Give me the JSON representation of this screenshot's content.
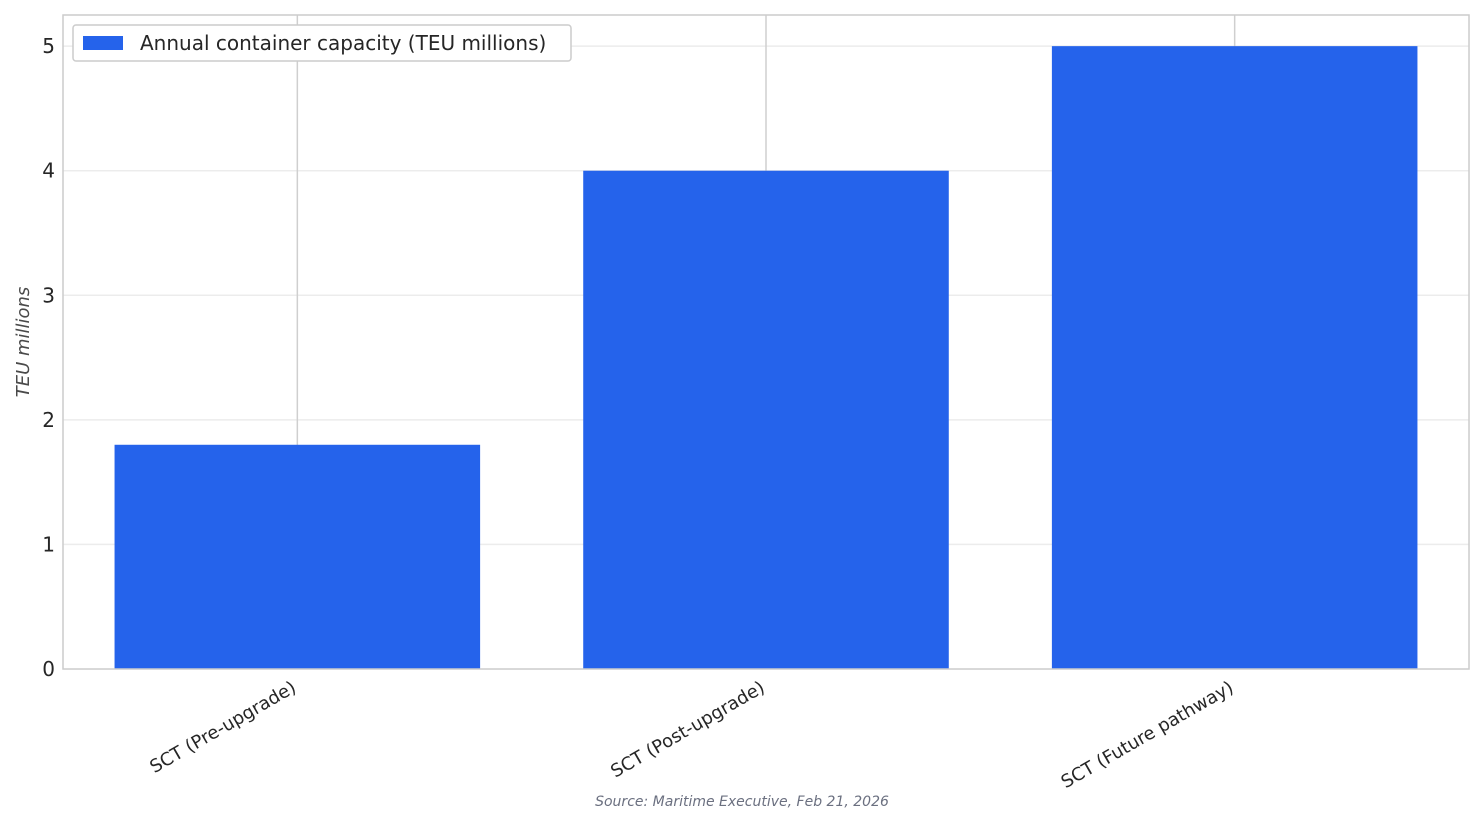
{
  "chart_data": {
    "type": "bar",
    "categories": [
      "SCT (Pre-upgrade)",
      "SCT (Post-upgrade)",
      "SCT (Future pathway)"
    ],
    "series": [
      {
        "name": "Annual container capacity (TEU millions)",
        "values": [
          1.8,
          4.0,
          5.0
        ],
        "color": "#2563eb"
      }
    ],
    "ylabel": "TEU millions",
    "xlabel": "",
    "ylim": [
      0,
      5.25
    ],
    "yticks": [
      0,
      1,
      2,
      3,
      4,
      5
    ],
    "legend_position": "top-left",
    "grid": true,
    "source": "Source: Maritime Executive, Feb 21, 2026"
  }
}
